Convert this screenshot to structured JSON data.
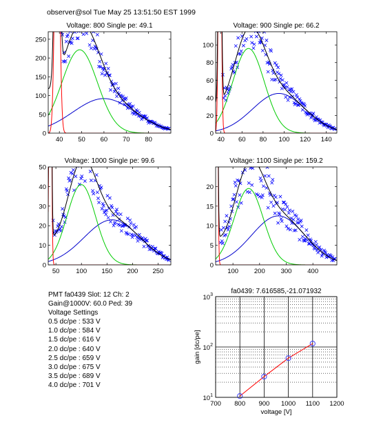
{
  "header": {
    "title": "observer@sol  Tue May 25 13:51:50 EST 1999"
  },
  "info": {
    "pmt_line": "PMT fa0439 Slot: 12 Ch: 2",
    "gain_line": "Gain@1000V: 60.0 Ped: 39",
    "settings_title": "Voltage Settings",
    "settings": [
      "0.5 dc/pe : 533 V",
      "1.0 dc/pe : 584 V",
      "1.5 dc/pe : 616 V",
      "2.0 dc/pe : 640 V",
      "2.5 dc/pe : 659 V",
      "3.0 dc/pe : 675 V",
      "3.5 dc/pe : 689 V",
      "4.0 dc/pe : 701 V"
    ]
  },
  "colors": {
    "data": "#0000ff",
    "total": "#000000",
    "signal": "#00cc00",
    "background": "#0000cc",
    "pedestal": "#ff0000"
  },
  "chart_data": [
    {
      "type": "scatter",
      "title": "Voltage: 800 Single pe: 49.1",
      "xlim": [
        35,
        90
      ],
      "ylim": [
        0,
        270
      ],
      "xticks": [
        40,
        50,
        60,
        70,
        80
      ],
      "yticks": [
        0,
        50,
        100,
        150,
        200,
        250
      ],
      "pedestal": {
        "center": 39,
        "width": 1.0,
        "height": 800,
        "offset": 52
      },
      "signal": {
        "center": 49.1,
        "width": 8.0,
        "height": 222
      },
      "background": {
        "center": 60,
        "width": 14,
        "height": 92
      },
      "noise": 0.13
    },
    {
      "type": "scatter",
      "title": "Voltage: 900 Single pe: 66.2",
      "xlim": [
        35,
        150
      ],
      "ylim": [
        0,
        115
      ],
      "xticks": [
        40,
        60,
        80,
        100,
        120,
        140
      ],
      "yticks": [
        0,
        20,
        40,
        60,
        80,
        100
      ],
      "pedestal": {
        "center": 39,
        "width": 1.2,
        "height": 400,
        "offset": 20
      },
      "signal": {
        "center": 66.2,
        "width": 15,
        "height": 96
      },
      "background": {
        "center": 95,
        "width": 25,
        "height": 45
      },
      "noise": 0.15
    },
    {
      "type": "scatter",
      "title": "Voltage: 1000 Single pe: 99.6",
      "xlim": [
        35,
        275
      ],
      "ylim": [
        0,
        50
      ],
      "xticks": [
        50,
        100,
        150,
        200,
        250
      ],
      "yticks": [
        0,
        10,
        20,
        30,
        40,
        50
      ],
      "pedestal": {
        "center": 39,
        "width": 2.0,
        "height": 200,
        "offset": 10
      },
      "signal": {
        "center": 99.6,
        "width": 28,
        "height": 41
      },
      "background": {
        "center": 160,
        "width": 55,
        "height": 23
      },
      "noise": 0.17
    },
    {
      "type": "scatter",
      "title": "Voltage: 1100 Single pe: 159.2",
      "xlim": [
        35,
        490
      ],
      "ylim": [
        0,
        25
      ],
      "xticks": [
        100,
        200,
        300,
        400
      ],
      "yticks": [
        0,
        5,
        10,
        15,
        20
      ],
      "pedestal": {
        "center": 39,
        "width": 3.5,
        "height": 100,
        "offset": 5
      },
      "signal": {
        "center": 159.2,
        "width": 55,
        "height": 19.5
      },
      "background": {
        "center": 270,
        "width": 100,
        "height": 12.5
      },
      "noise": 0.22
    },
    {
      "type": "line",
      "title": "fa0439: 7.616585,-21.071932",
      "xlabel": "voltage [V]",
      "ylabel": "gain [dc/pe]",
      "xlim": [
        700,
        1200
      ],
      "ylim": [
        10,
        1000
      ],
      "yscale": "log",
      "xticks": [
        700,
        800,
        900,
        1000,
        1100,
        1200
      ],
      "ytick_labels": [
        {
          "v": 10,
          "exp": "1"
        },
        {
          "v": 100,
          "exp": "2"
        },
        {
          "v": 1000,
          "exp": "3"
        }
      ],
      "ytick_base": "10",
      "x": [
        800,
        900,
        1000,
        1100
      ],
      "y": [
        10.6,
        25.8,
        60.0,
        116.8
      ],
      "grid": true
    }
  ]
}
